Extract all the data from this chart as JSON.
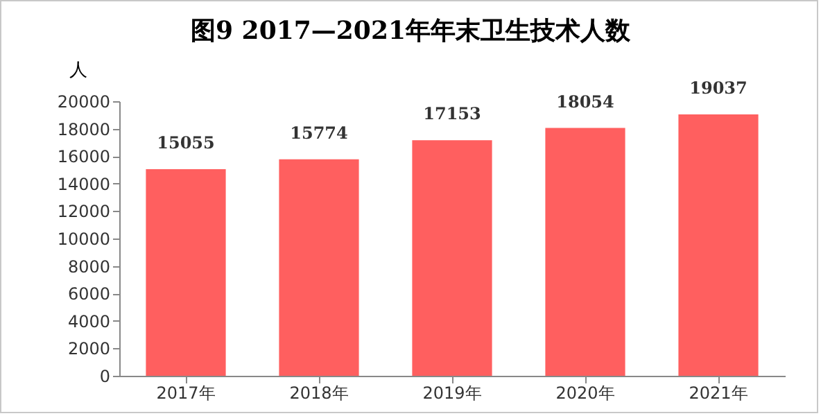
{
  "chart_data": {
    "type": "bar",
    "title": "图9  2017—2021年年末卫生技术人数",
    "ylabel": "人",
    "categories": [
      "2017年",
      "2018年",
      "2019年",
      "2020年",
      "2021年"
    ],
    "values": [
      15055,
      15774,
      17153,
      18054,
      19037
    ],
    "color": "#ff5f5f",
    "ylim": [
      0,
      20000
    ],
    "yticks": [
      0,
      2000,
      4000,
      6000,
      8000,
      10000,
      12000,
      14000,
      16000,
      18000,
      20000
    ],
    "grid": false,
    "data_labels": true
  }
}
